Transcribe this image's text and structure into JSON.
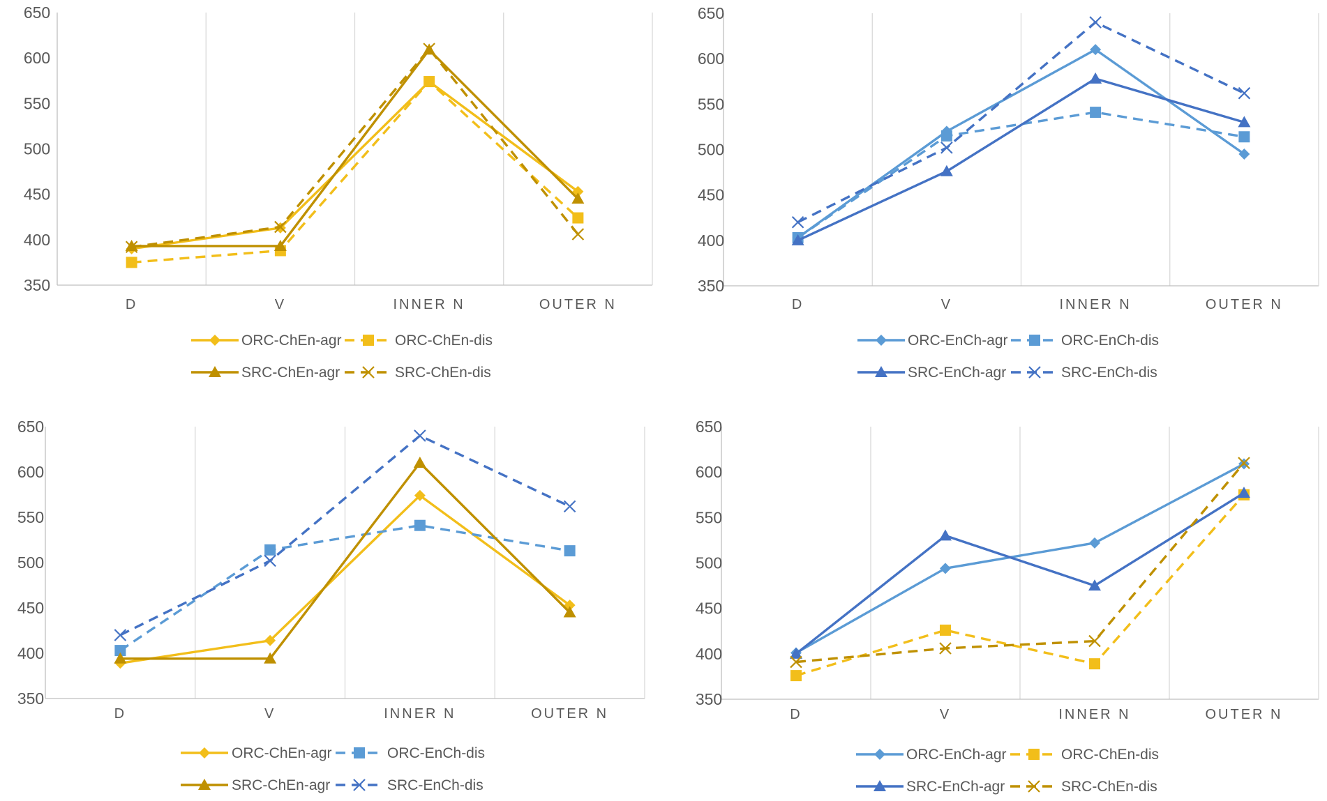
{
  "colors": {
    "orc_chen": "#F2BE1A",
    "src_chen": "#BF9000",
    "orc_ench": "#5B9BD5",
    "src_ench": "#4472C4",
    "grid": "#D9D9D9",
    "axis": "#BFBFBF",
    "text": "#595959"
  },
  "chart_data": [
    {
      "type": "line",
      "title": "",
      "categories": [
        "D",
        "V",
        "INNER N",
        "OUTER N"
      ],
      "ylim": [
        350,
        650
      ],
      "yticks": [
        350,
        400,
        450,
        500,
        550,
        600,
        650
      ],
      "series": [
        {
          "name": "ORC-ChEn-agr",
          "values": [
            390,
            413,
            574,
            453
          ],
          "color": "orc_chen",
          "dash": false,
          "marker": "diamond"
        },
        {
          "name": "ORC-ChEn-dis",
          "values": [
            375,
            388,
            574,
            424
          ],
          "color": "orc_chen",
          "dash": true,
          "marker": "square"
        },
        {
          "name": "SRC-ChEn-agr",
          "values": [
            393,
            393,
            609,
            445
          ],
          "color": "src_chen",
          "dash": false,
          "marker": "triangle"
        },
        {
          "name": "SRC-ChEn-dis",
          "values": [
            392,
            414,
            610,
            406
          ],
          "color": "src_chen",
          "dash": true,
          "marker": "x"
        }
      ]
    },
    {
      "type": "line",
      "title": "",
      "categories": [
        "D",
        "V",
        "INNER N",
        "OUTER N"
      ],
      "ylim": [
        350,
        650
      ],
      "yticks": [
        350,
        400,
        450,
        500,
        550,
        600,
        650
      ],
      "series": [
        {
          "name": "ORC-EnCh-agr",
          "values": [
            403,
            520,
            610,
            495
          ],
          "color": "orc_ench",
          "dash": false,
          "marker": "diamond"
        },
        {
          "name": "ORC-EnCh-dis",
          "values": [
            403,
            515,
            541,
            514
          ],
          "color": "orc_ench",
          "dash": true,
          "marker": "square"
        },
        {
          "name": "SRC-EnCh-agr",
          "values": [
            400,
            476,
            578,
            530
          ],
          "color": "src_ench",
          "dash": false,
          "marker": "triangle"
        },
        {
          "name": "SRC-EnCh-dis",
          "values": [
            420,
            502,
            640,
            562
          ],
          "color": "src_ench",
          "dash": true,
          "marker": "x"
        }
      ]
    },
    {
      "type": "line",
      "title": "",
      "categories": [
        "D",
        "V",
        "INNER N",
        "OUTER N"
      ],
      "ylim": [
        350,
        650
      ],
      "yticks": [
        350,
        400,
        450,
        500,
        550,
        600,
        650
      ],
      "series": [
        {
          "name": "ORC-ChEn-agr",
          "values": [
            389,
            414,
            574,
            453
          ],
          "color": "orc_chen",
          "dash": false,
          "marker": "diamond"
        },
        {
          "name": "ORC-EnCh-dis",
          "values": [
            403,
            514,
            541,
            513
          ],
          "color": "orc_ench",
          "dash": true,
          "marker": "square"
        },
        {
          "name": "SRC-ChEn-agr",
          "values": [
            394,
            394,
            610,
            445
          ],
          "color": "src_chen",
          "dash": false,
          "marker": "triangle"
        },
        {
          "name": "SRC-EnCh-dis",
          "values": [
            420,
            502,
            640,
            562
          ],
          "color": "src_ench",
          "dash": true,
          "marker": "x"
        }
      ]
    },
    {
      "type": "line",
      "title": "",
      "categories": [
        "D",
        "V",
        "INNER N",
        "OUTER N"
      ],
      "ylim": [
        350,
        650
      ],
      "yticks": [
        350,
        400,
        450,
        500,
        550,
        600,
        650
      ],
      "series": [
        {
          "name": "ORC-EnCh-agr",
          "values": [
            401,
            494,
            522,
            609
          ],
          "color": "orc_ench",
          "dash": false,
          "marker": "diamond"
        },
        {
          "name": "ORC-ChEn-dis",
          "values": [
            376,
            426,
            389,
            575
          ],
          "color": "orc_chen",
          "dash": true,
          "marker": "square"
        },
        {
          "name": "SRC-EnCh-agr",
          "values": [
            400,
            530,
            475,
            577
          ],
          "color": "src_ench",
          "dash": false,
          "marker": "triangle"
        },
        {
          "name": "SRC-ChEn-dis",
          "values": [
            391,
            406,
            414,
            610
          ],
          "color": "src_chen",
          "dash": true,
          "marker": "x"
        }
      ]
    }
  ]
}
